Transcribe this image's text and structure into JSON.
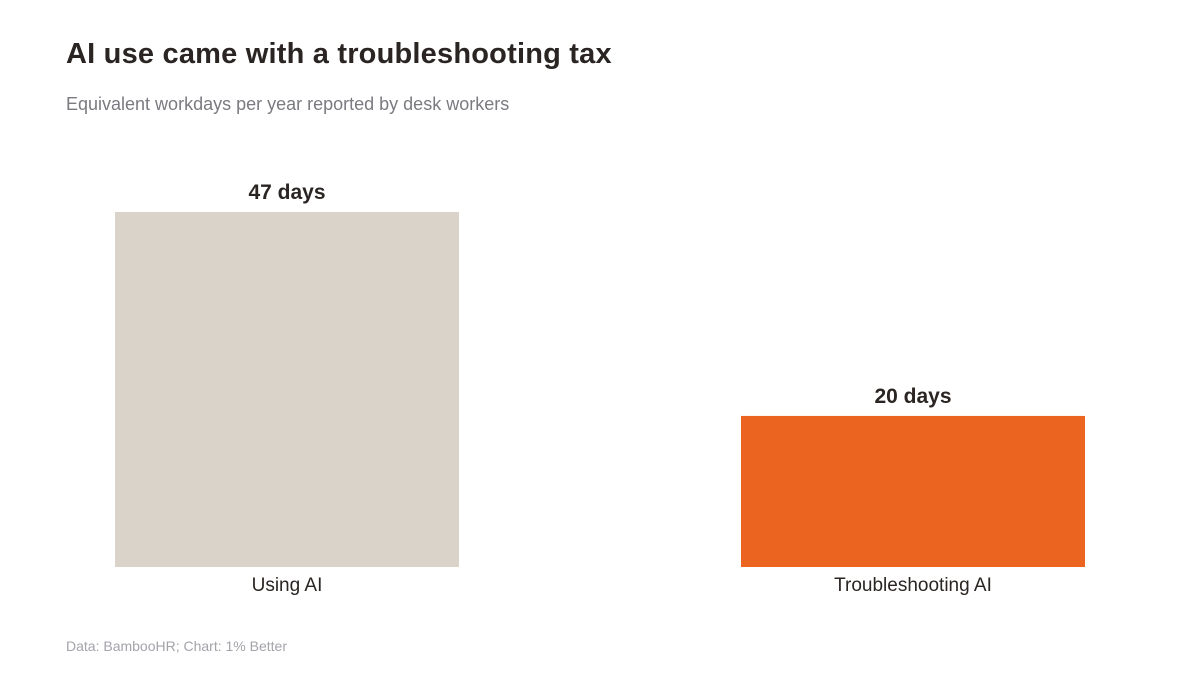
{
  "title": "AI use came with a troubleshooting tax",
  "subtitle": "Equivalent workdays per year reported by desk workers",
  "source": "Data: BambooHR; Chart: 1% Better",
  "chart_data": {
    "type": "bar",
    "categories": [
      "Using AI",
      "Troubleshooting AI"
    ],
    "values": [
      47,
      20
    ],
    "data_labels": [
      "47 days",
      "20 days"
    ],
    "colors": [
      "#d9d3c9",
      "#ec6520"
    ],
    "ylim": [
      0,
      47
    ],
    "grid": false,
    "legend": "none"
  }
}
